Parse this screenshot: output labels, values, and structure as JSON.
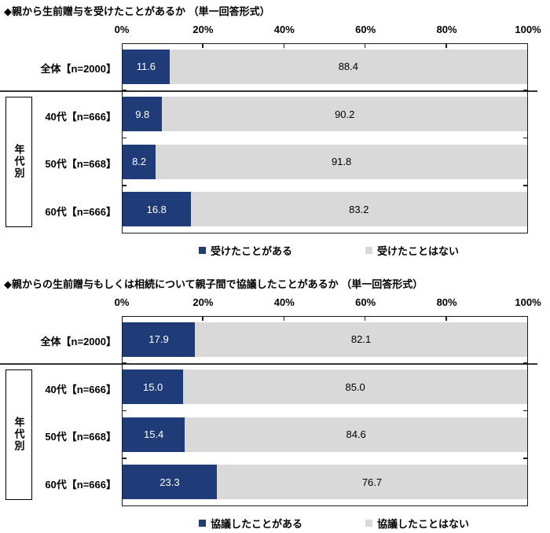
{
  "page": {
    "background": "#ffffff"
  },
  "colors": {
    "yes_segment": "#203c78",
    "no_segment": "#d9d9d9",
    "plot_border": "#1a1a1a",
    "separator": "#333333"
  },
  "chart_data": [
    {
      "type": "bar",
      "orientation": "horizontal",
      "stacked": true,
      "title": "◆親から生前贈与を受けたことがあるか （単一回答形式）",
      "group_label": "年代別",
      "categories": [
        "全体【n=2000】",
        "40代【n=666】",
        "50代【n=668】",
        "60代【n=666】"
      ],
      "series": [
        {
          "name": "受けたことがある",
          "color": "#203c78",
          "values": [
            11.6,
            9.8,
            8.2,
            16.8
          ]
        },
        {
          "name": "受けたことはない",
          "color": "#d9d9d9",
          "values": [
            88.4,
            90.2,
            91.8,
            83.2
          ]
        }
      ],
      "xlim": [
        0,
        100
      ],
      "x_ticks": [
        "0%",
        "20%",
        "40%",
        "60%",
        "80%",
        "100%"
      ],
      "grid": false,
      "legend_position": "bottom"
    },
    {
      "type": "bar",
      "orientation": "horizontal",
      "stacked": true,
      "title": "◆親からの生前贈与もしくは相続について親子間で協議したことがあるか （単一回答形式）",
      "group_label": "年代別",
      "categories": [
        "全体【n=2000】",
        "40代【n=666】",
        "50代【n=668】",
        "60代【n=666】"
      ],
      "series": [
        {
          "name": "協議したことがある",
          "color": "#203c78",
          "values": [
            17.9,
            15.0,
            15.4,
            23.3
          ]
        },
        {
          "name": "協議したことはない",
          "color": "#d9d9d9",
          "values": [
            82.1,
            85.0,
            84.6,
            76.7
          ]
        }
      ],
      "xlim": [
        0,
        100
      ],
      "x_ticks": [
        "0%",
        "20%",
        "40%",
        "60%",
        "80%",
        "100%"
      ],
      "grid": false,
      "legend_position": "bottom"
    }
  ]
}
